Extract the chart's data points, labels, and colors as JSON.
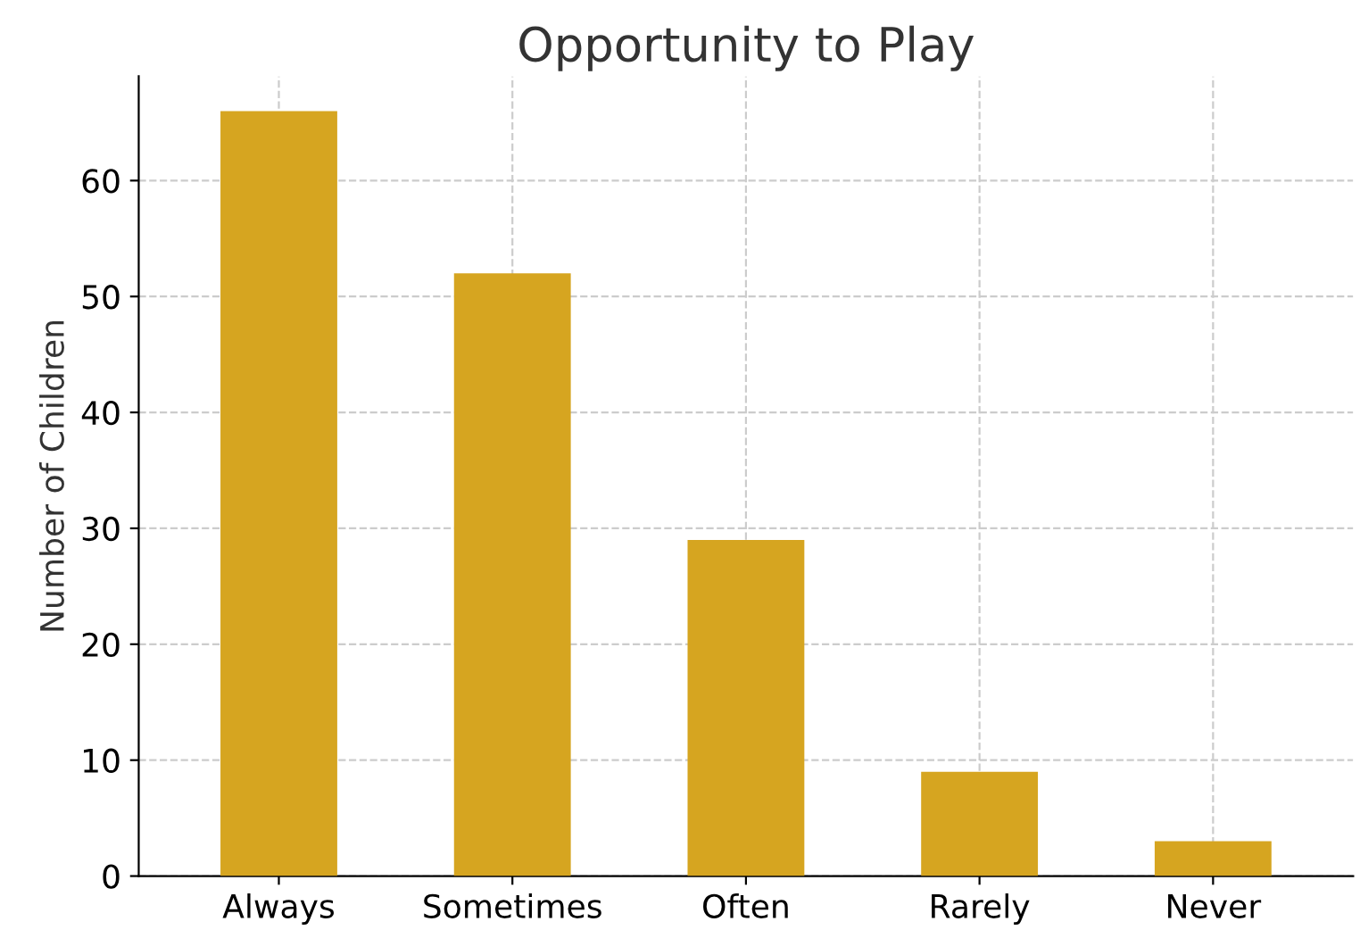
{
  "chart_data": {
    "type": "bar",
    "title": "Opportunity to Play",
    "ylabel": "Number of Children",
    "categories": [
      "Always",
      "Sometimes",
      "Often",
      "Rarely",
      "Never"
    ],
    "values": [
      66,
      52,
      29,
      9,
      3
    ],
    "color": "#d6a520",
    "ylim": [
      0,
      69
    ],
    "yticks": [
      0,
      10,
      20,
      30,
      40,
      50,
      60
    ],
    "grid": true
  }
}
